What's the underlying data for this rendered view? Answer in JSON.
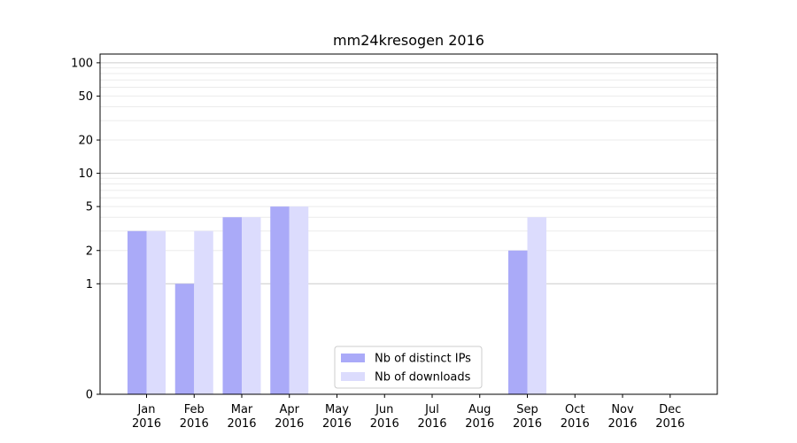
{
  "chart_data": {
    "type": "bar",
    "title": "mm24kresogen 2016",
    "xlabel": "",
    "ylabel": "",
    "yscale": "symlog",
    "ylim": [
      0,
      120
    ],
    "yticks": [
      0,
      1,
      2,
      5,
      10,
      20,
      50,
      100
    ],
    "categories": [
      [
        "Jan",
        "2016"
      ],
      [
        "Feb",
        "2016"
      ],
      [
        "Mar",
        "2016"
      ],
      [
        "Apr",
        "2016"
      ],
      [
        "May",
        "2016"
      ],
      [
        "Jun",
        "2016"
      ],
      [
        "Jul",
        "2016"
      ],
      [
        "Aug",
        "2016"
      ],
      [
        "Sep",
        "2016"
      ],
      [
        "Oct",
        "2016"
      ],
      [
        "Nov",
        "2016"
      ],
      [
        "Dec",
        "2016"
      ]
    ],
    "series": [
      {
        "name": "Nb of distinct IPs",
        "color": "#aaaaf8",
        "values": [
          3,
          1,
          4,
          5,
          0,
          0,
          0,
          0,
          2,
          0,
          0,
          0
        ]
      },
      {
        "name": "Nb of downloads",
        "color": "#dcdcfd",
        "values": [
          3,
          3,
          4,
          5,
          0,
          0,
          0,
          0,
          4,
          0,
          0,
          0
        ]
      }
    ],
    "grid": true,
    "legend_position": "lower-center"
  }
}
